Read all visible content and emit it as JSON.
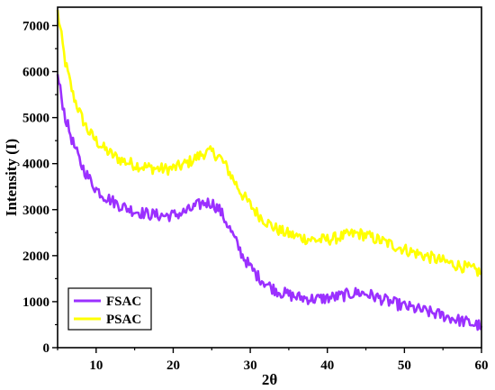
{
  "chart_data": {
    "type": "line",
    "xlabel": "2θ",
    "ylabel": "Intensity (I)",
    "xlim": [
      5,
      60
    ],
    "ylim": [
      0,
      7400
    ],
    "x_ticks": [
      10,
      20,
      30,
      40,
      50,
      60
    ],
    "y_ticks": [
      0,
      1000,
      2000,
      3000,
      4000,
      5000,
      6000,
      7000
    ],
    "legend_position": "bottom-left",
    "grid": false,
    "series": [
      {
        "name": "FSAC",
        "color": "#9b30ff",
        "x": [
          5,
          6,
          7,
          8,
          9,
          10,
          11,
          12,
          13,
          14,
          15,
          16,
          17,
          18,
          19,
          20,
          21,
          22,
          23,
          24,
          25,
          26,
          27,
          28,
          29,
          30,
          31,
          32,
          33,
          34,
          35,
          36,
          37,
          38,
          39,
          40,
          41,
          42,
          43,
          44,
          45,
          46,
          47,
          48,
          49,
          50,
          51,
          52,
          53,
          54,
          55,
          56,
          57,
          58,
          59,
          60
        ],
        "y": [
          5900,
          5000,
          4450,
          4000,
          3700,
          3450,
          3300,
          3200,
          3100,
          3030,
          2970,
          2930,
          2900,
          2880,
          2870,
          2880,
          2920,
          2980,
          3080,
          3150,
          3150,
          3000,
          2700,
          2350,
          2000,
          1750,
          1550,
          1400,
          1280,
          1200,
          1150,
          1100,
          1080,
          1060,
          1060,
          1080,
          1100,
          1130,
          1170,
          1200,
          1170,
          1120,
          1060,
          1000,
          950,
          900,
          860,
          820,
          780,
          740,
          700,
          650,
          600,
          560,
          510,
          470
        ]
      },
      {
        "name": "PSAC",
        "color": "#ffff00",
        "x": [
          5,
          6,
          7,
          8,
          9,
          10,
          11,
          12,
          13,
          14,
          15,
          16,
          17,
          18,
          19,
          20,
          21,
          22,
          23,
          24,
          25,
          26,
          27,
          28,
          29,
          30,
          31,
          32,
          33,
          34,
          35,
          36,
          37,
          38,
          39,
          40,
          41,
          42,
          43,
          44,
          45,
          46,
          47,
          48,
          49,
          50,
          51,
          52,
          53,
          54,
          55,
          56,
          57,
          58,
          59,
          60
        ],
        "y": [
          7300,
          6200,
          5500,
          5050,
          4700,
          4500,
          4330,
          4200,
          4100,
          4030,
          3980,
          3940,
          3910,
          3890,
          3880,
          3900,
          3950,
          4030,
          4130,
          4230,
          4250,
          4150,
          3900,
          3600,
          3320,
          3100,
          2900,
          2750,
          2620,
          2530,
          2470,
          2420,
          2380,
          2350,
          2340,
          2350,
          2380,
          2420,
          2460,
          2480,
          2440,
          2380,
          2320,
          2260,
          2200,
          2140,
          2080,
          2030,
          1980,
          1930,
          1880,
          1830,
          1790,
          1740,
          1690,
          1630
        ]
      }
    ]
  }
}
